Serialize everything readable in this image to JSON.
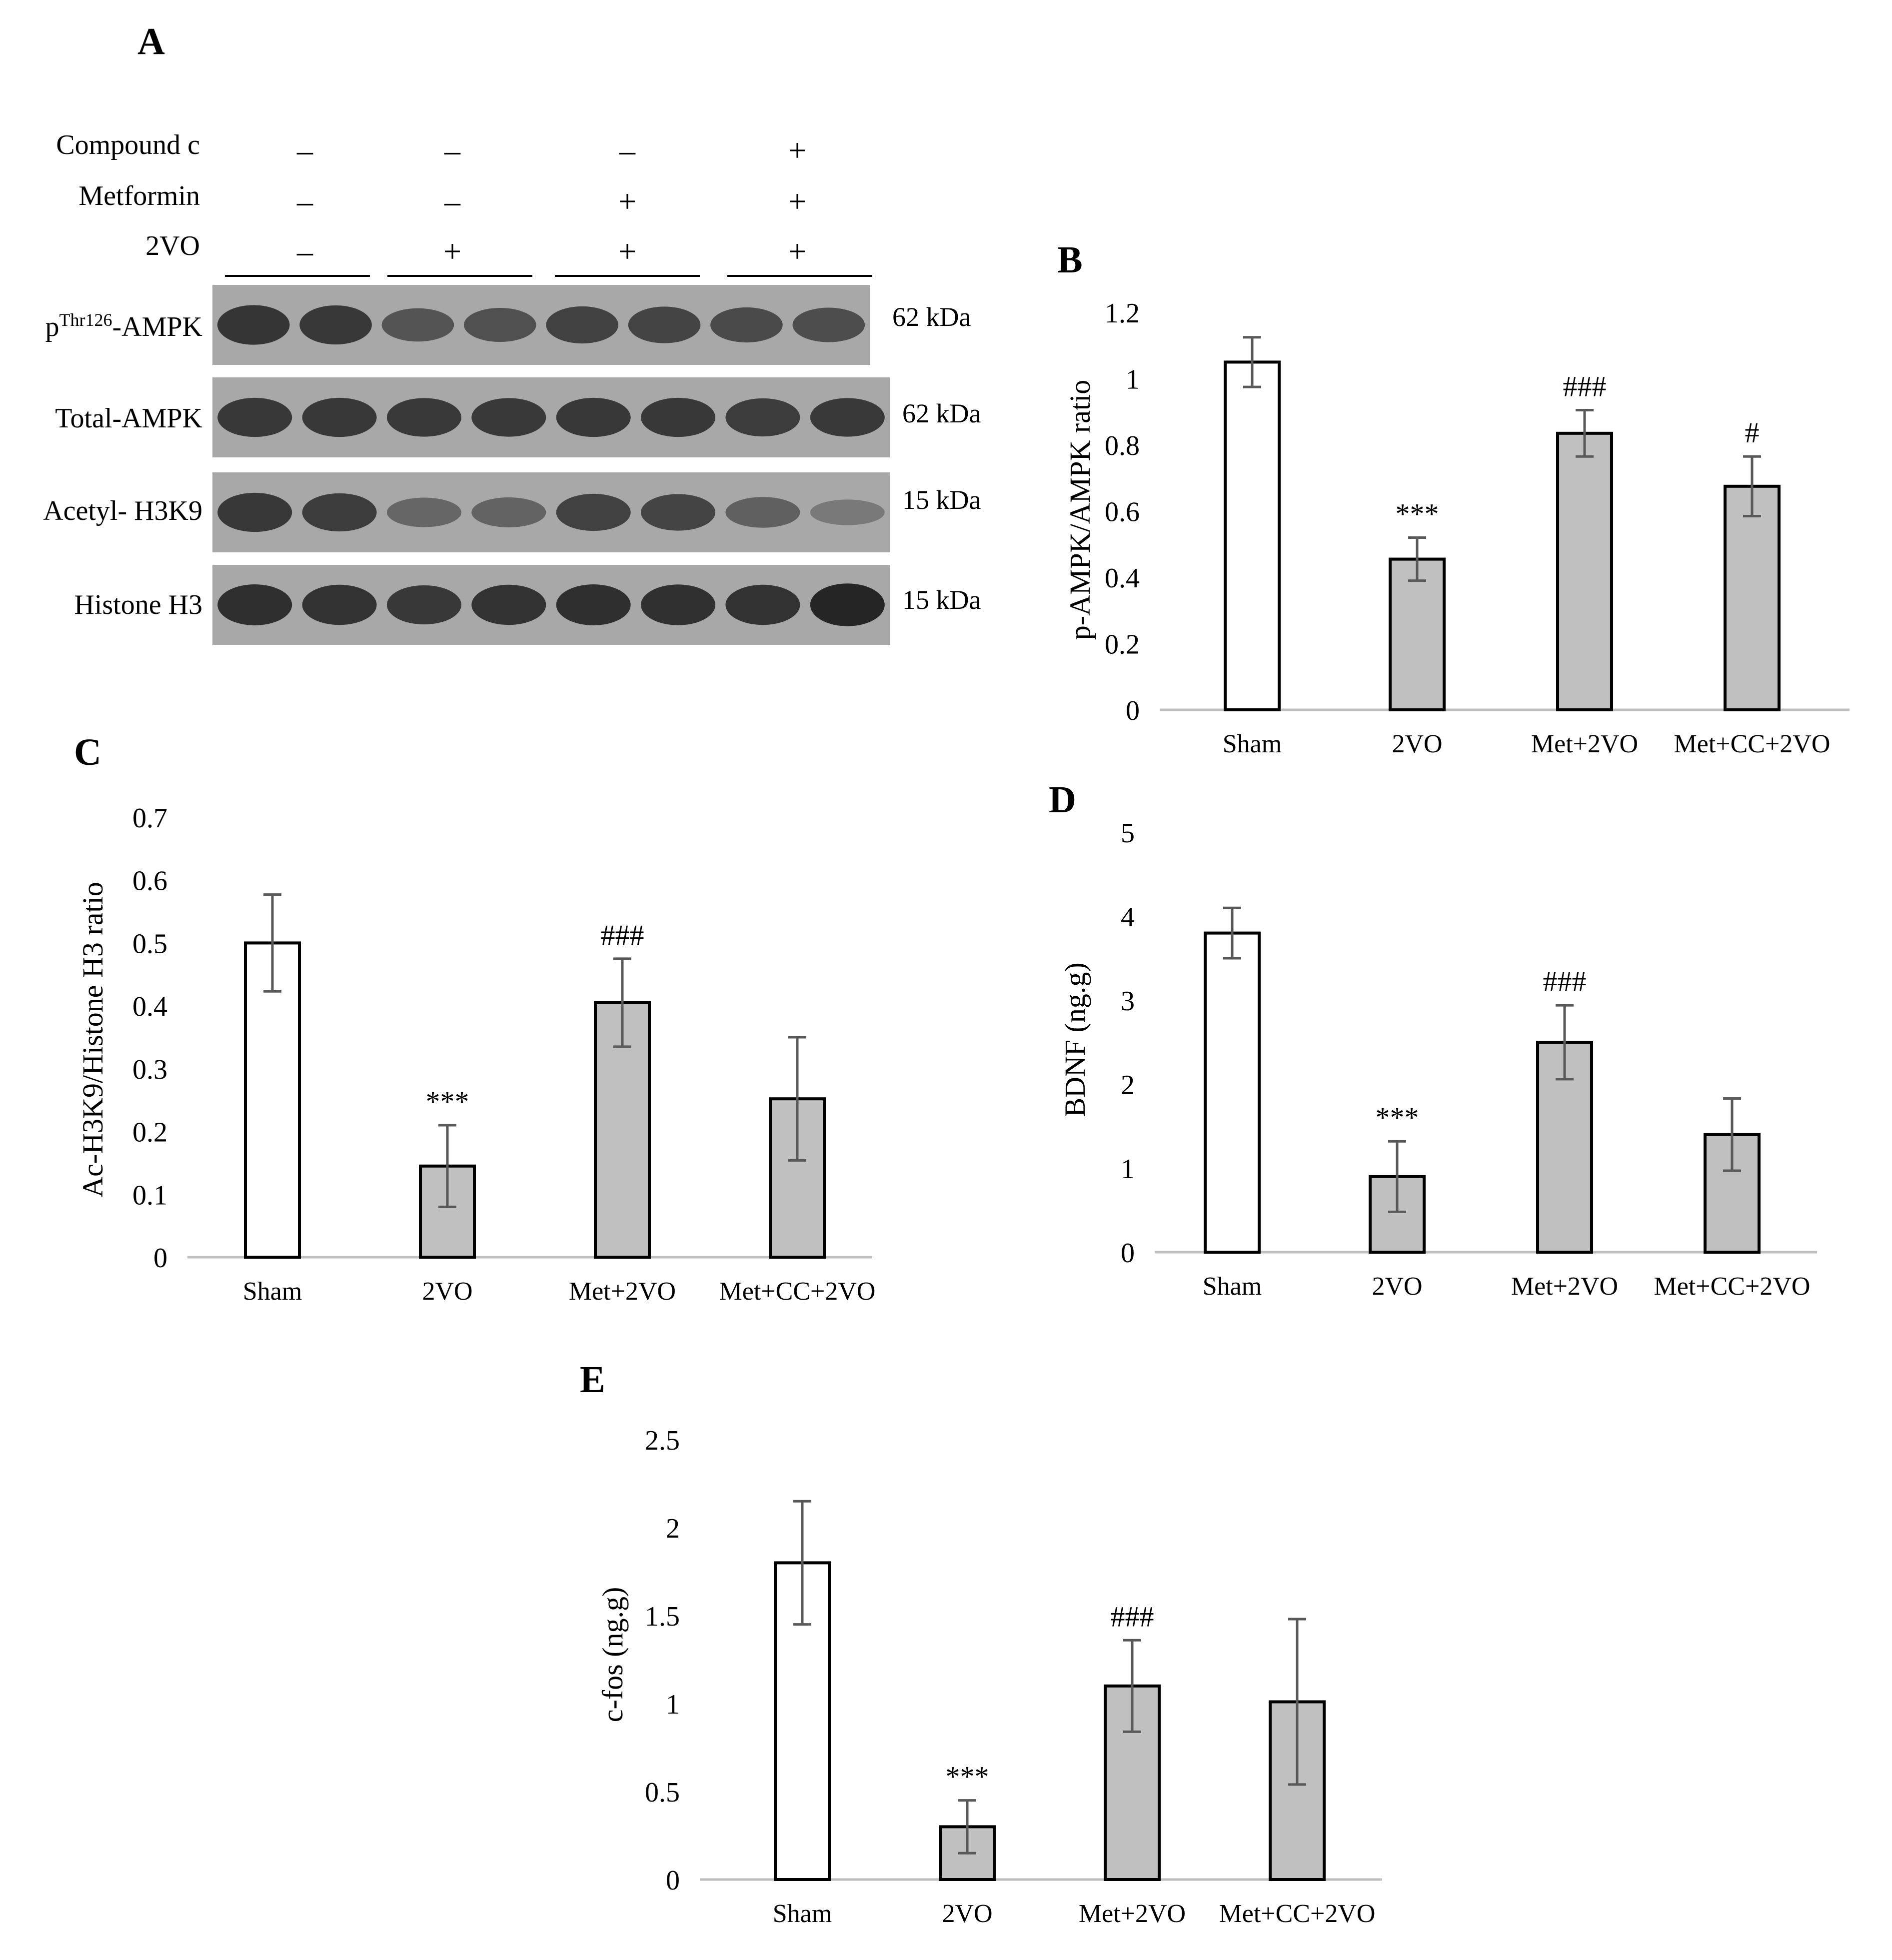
{
  "panels": {
    "A": "A",
    "B": "B",
    "C": "C",
    "D": "D",
    "E": "E"
  },
  "western_blot": {
    "treatments": [
      {
        "label": "Compound c",
        "signs": [
          "–",
          "–",
          "–",
          "+"
        ]
      },
      {
        "label": "Metformin",
        "signs": [
          "–",
          "–",
          "+",
          "+"
        ]
      },
      {
        "label": "2VO",
        "signs": [
          "–",
          "+",
          "+",
          "+"
        ]
      }
    ],
    "blots": [
      {
        "label_main": "p",
        "label_sup": "Thr126",
        "label_tail": "-AMPK",
        "mw": "62 kDa",
        "intensity": [
          0.8,
          0.78,
          0.55,
          0.58,
          0.7,
          0.68,
          0.62,
          0.6
        ]
      },
      {
        "label_main": "Total-AMPK",
        "label_sup": "",
        "label_tail": "",
        "mw": "62 kDa",
        "intensity": [
          0.78,
          0.78,
          0.76,
          0.76,
          0.78,
          0.78,
          0.74,
          0.76
        ]
      },
      {
        "label_main": "Acetyl- H3K9",
        "label_sup": "",
        "label_tail": "",
        "mw": "15 kDa",
        "intensity": [
          0.78,
          0.74,
          0.4,
          0.42,
          0.7,
          0.68,
          0.45,
          0.25
        ]
      },
      {
        "label_main": "Histone H3",
        "label_sup": "",
        "label_tail": "",
        "mw": "15 kDa",
        "intensity": [
          0.85,
          0.82,
          0.78,
          0.82,
          0.85,
          0.84,
          0.82,
          0.92
        ]
      }
    ]
  },
  "chart_data": [
    {
      "panel": "B",
      "type": "bar",
      "categories": [
        "Sham",
        "2VO",
        "Met+2VO",
        "Met+CC+2VO"
      ],
      "values": [
        1.05,
        0.455,
        0.835,
        0.675
      ],
      "errors": [
        0.075,
        0.065,
        0.07,
        0.09
      ],
      "annotations": [
        "",
        "***",
        "###",
        "#"
      ],
      "bar_colors": [
        "#ffffff",
        "#c0c0c0",
        "#c0c0c0",
        "#c0c0c0"
      ],
      "xlabel": "",
      "ylabel": "p-AMPK/AMPK ratio",
      "ylim": [
        0,
        1.2
      ],
      "yticks": [
        0,
        0.2,
        0.4,
        0.6,
        0.8,
        1,
        1.2
      ],
      "ytick_labels": [
        "0",
        "0.2",
        "0.4",
        "0.6",
        "0.8",
        "1",
        "1.2"
      ]
    },
    {
      "panel": "C",
      "type": "bar",
      "categories": [
        "Sham",
        "2VO",
        "Met+2VO",
        "Met+CC+2VO"
      ],
      "values": [
        0.5,
        0.145,
        0.405,
        0.252
      ],
      "errors": [
        0.077,
        0.065,
        0.07,
        0.098
      ],
      "annotations": [
        "",
        "***",
        "###",
        ""
      ],
      "bar_colors": [
        "#ffffff",
        "#c0c0c0",
        "#c0c0c0",
        "#c0c0c0"
      ],
      "xlabel": "",
      "ylabel": "Ac-H3K9/Histone H3 ratio",
      "ylim": [
        0,
        0.7
      ],
      "yticks": [
        0,
        0.1,
        0.2,
        0.3,
        0.4,
        0.5,
        0.6,
        0.7
      ],
      "ytick_labels": [
        "0",
        "0.1",
        "0.2",
        "0.3",
        "0.4",
        "0.5",
        "0.6",
        "0.7"
      ]
    },
    {
      "panel": "D",
      "type": "bar",
      "categories": [
        "Sham",
        "2VO",
        "Met+2VO",
        "Met+CC+2VO"
      ],
      "values": [
        3.8,
        0.9,
        2.5,
        1.4
      ],
      "errors": [
        0.3,
        0.42,
        0.44,
        0.43
      ],
      "annotations": [
        "",
        "***",
        "###",
        ""
      ],
      "bar_colors": [
        "#ffffff",
        "#c0c0c0",
        "#c0c0c0",
        "#c0c0c0"
      ],
      "xlabel": "",
      "ylabel": "BDNF (ng.g)",
      "ylim": [
        0,
        5
      ],
      "yticks": [
        0,
        1,
        2,
        3,
        4,
        5
      ],
      "ytick_labels": [
        "0",
        "1",
        "2",
        "3",
        "4",
        "5"
      ]
    },
    {
      "panel": "E",
      "type": "bar",
      "categories": [
        "Sham",
        "2VO",
        "Met+2VO",
        "Met+CC+2VO"
      ],
      "values": [
        1.8,
        0.3,
        1.1,
        1.01
      ],
      "errors": [
        0.35,
        0.15,
        0.26,
        0.47
      ],
      "annotations": [
        "",
        "***",
        "###",
        ""
      ],
      "bar_colors": [
        "#ffffff",
        "#c0c0c0",
        "#c0c0c0",
        "#c0c0c0"
      ],
      "xlabel": "",
      "ylabel": "c-fos (ng.g)",
      "ylim": [
        0,
        2.5
      ],
      "yticks": [
        0,
        0.5,
        1,
        1.5,
        2,
        2.5
      ],
      "ytick_labels": [
        "0",
        "0.5",
        "1",
        "1.5",
        "2",
        "2.5"
      ]
    }
  ]
}
